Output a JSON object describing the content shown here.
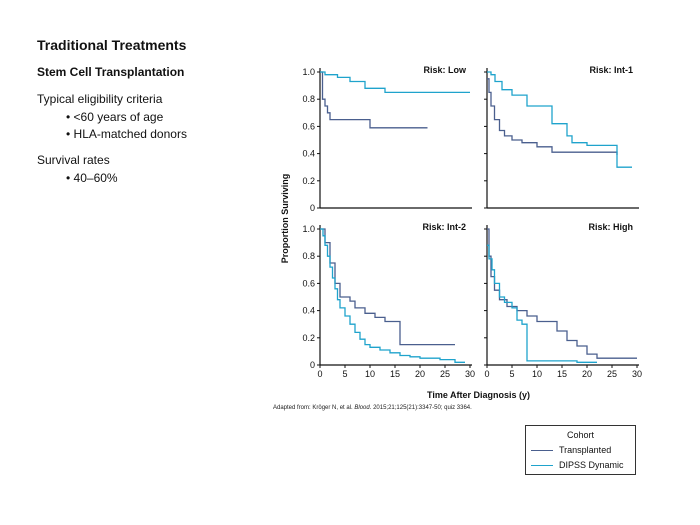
{
  "slide": {
    "title": "Traditional Treatments",
    "subtitle": "Stem Cell Transplantation",
    "eligibility_heading": "Typical eligibility criteria",
    "eligibility_items": [
      "<60 years of age",
      "HLA-matched donors"
    ],
    "survival_heading": "Survival rates",
    "survival_items": [
      "40–60%"
    ],
    "source_parts": {
      "before": "Adapted from: Kröger N, et al. ",
      "journal": "Blood",
      "after": ". 2015;21;125(21):3347-50; quiz 3364."
    }
  },
  "legend": {
    "title": "Cohort",
    "items": [
      {
        "label": "Transplanted",
        "color": "#4a5f8e"
      },
      {
        "label": "DIPSS Dynamic",
        "color": "#1fa3cc"
      }
    ]
  },
  "chart_data": {
    "type": "line",
    "step": true,
    "ylabel": "Proportion Surviving",
    "xlabel": "Time After Diagnosis (y)",
    "xlim": [
      0,
      30
    ],
    "ylim": [
      0,
      1.0
    ],
    "yticks": [
      "0",
      "0.2",
      "0.4",
      "0.6",
      "0.8",
      "1.0"
    ],
    "xticks": [
      "0",
      "5",
      "10",
      "15",
      "20",
      "25",
      "30"
    ],
    "panels": [
      {
        "label": "Risk: Low",
        "series": [
          {
            "name": "Transplanted",
            "color": "#4a5f8e",
            "x": [
              0,
              0.5,
              1,
              1.5,
              2,
              10,
              21.5
            ],
            "y": [
              1.0,
              0.8,
              0.75,
              0.7,
              0.65,
              0.59,
              0.59
            ]
          },
          {
            "name": "DIPSS Dynamic",
            "color": "#1fa3cc",
            "x": [
              0,
              1,
              3.5,
              6,
              9,
              13,
              30
            ],
            "y": [
              1.0,
              0.98,
              0.96,
              0.93,
              0.88,
              0.85,
              0.85
            ]
          }
        ]
      },
      {
        "label": "Risk: Int-1",
        "series": [
          {
            "name": "Transplanted",
            "color": "#4a5f8e",
            "x": [
              0,
              0.4,
              0.8,
              1.5,
              2.5,
              3.5,
              5,
              7,
              10,
              13,
              26
            ],
            "y": [
              0.95,
              0.85,
              0.75,
              0.65,
              0.57,
              0.53,
              0.5,
              0.48,
              0.45,
              0.41,
              0.39
            ]
          },
          {
            "name": "DIPSS Dynamic",
            "color": "#1fa3cc",
            "x": [
              0,
              0.8,
              1.6,
              3,
              5,
              8,
              13,
              16,
              17,
              20,
              26,
              29
            ],
            "y": [
              1.0,
              0.98,
              0.93,
              0.87,
              0.83,
              0.75,
              0.62,
              0.53,
              0.48,
              0.46,
              0.3,
              0.3
            ]
          }
        ]
      },
      {
        "label": "Risk: Int-2",
        "series": [
          {
            "name": "Transplanted",
            "color": "#4a5f8e",
            "x": [
              0,
              1,
              2,
              3,
              4,
              6,
              7,
              9,
              11,
              13,
              16,
              27
            ],
            "y": [
              1.0,
              0.9,
              0.75,
              0.6,
              0.5,
              0.47,
              0.42,
              0.38,
              0.35,
              0.32,
              0.15,
              0.15
            ]
          },
          {
            "name": "DIPSS Dynamic",
            "color": "#1fa3cc",
            "x": [
              0,
              0.6,
              1,
              1.5,
              2,
              2.5,
              3,
              3.5,
              4,
              5,
              6,
              7,
              8,
              9,
              10,
              12,
              14,
              16,
              18,
              20,
              22,
              24,
              27,
              29
            ],
            "y": [
              1.0,
              0.95,
              0.88,
              0.8,
              0.72,
              0.64,
              0.56,
              0.48,
              0.42,
              0.36,
              0.3,
              0.24,
              0.19,
              0.15,
              0.13,
              0.11,
              0.09,
              0.07,
              0.06,
              0.05,
              0.05,
              0.04,
              0.02,
              0.02
            ]
          }
        ]
      },
      {
        "label": "Risk: High",
        "series": [
          {
            "name": "Transplanted",
            "color": "#4a5f8e",
            "x": [
              0,
              0.4,
              0.8,
              1.5,
              2.5,
              4,
              6,
              8,
              10,
              14,
              16,
              18,
              20,
              22,
              30
            ],
            "y": [
              1.0,
              0.8,
              0.65,
              0.55,
              0.48,
              0.43,
              0.4,
              0.36,
              0.32,
              0.25,
              0.18,
              0.14,
              0.08,
              0.05,
              0.05
            ]
          },
          {
            "name": "DIPSS Dynamic",
            "color": "#1fa3cc",
            "x": [
              0,
              0.4,
              1,
              1.5,
              2.5,
              3.5,
              5,
              6,
              7,
              8,
              12,
              18,
              22
            ],
            "y": [
              0.88,
              0.78,
              0.7,
              0.6,
              0.5,
              0.46,
              0.42,
              0.33,
              0.3,
              0.03,
              0.03,
              0.02,
              0.02
            ]
          }
        ]
      }
    ]
  }
}
